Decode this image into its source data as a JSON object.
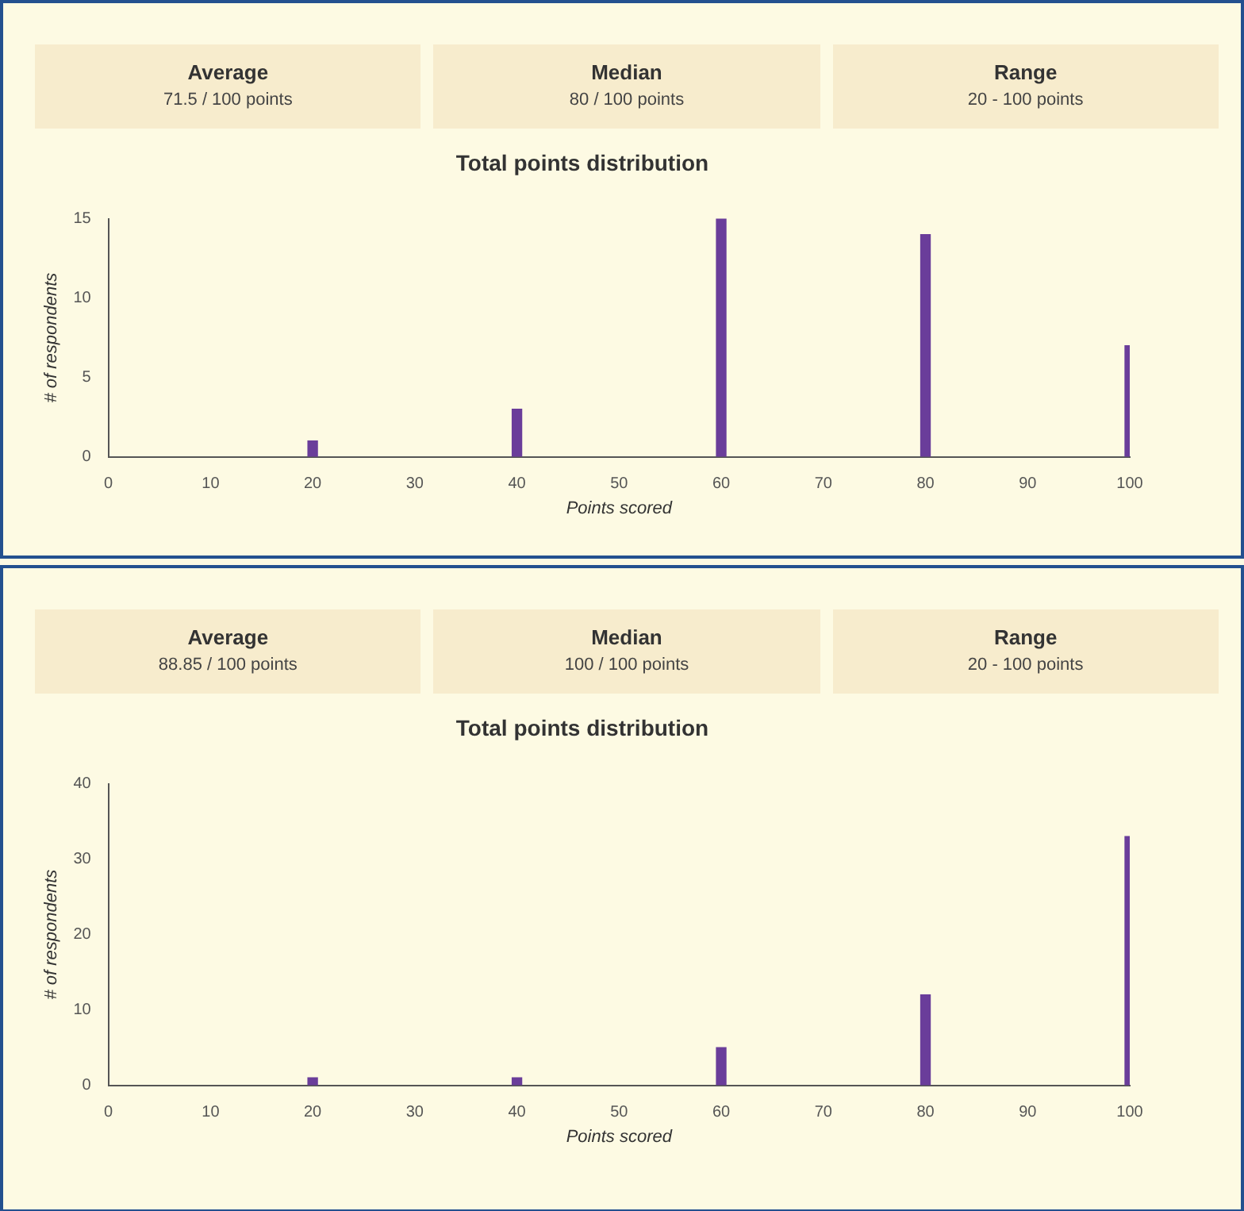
{
  "chart_data": [
    {
      "type": "other",
      "annotations": [
        "Average",
        "71.5 / 100 points",
        "Median",
        "80 / 100 points",
        "Range",
        "20 - 100 points"
      ]
    },
    {
      "type": "bar",
      "title": "Total points distribution",
      "xlabel": "Points scored",
      "ylabel": "# of respondents",
      "x": [
        20,
        40,
        60,
        80,
        100
      ],
      "values": [
        1,
        3,
        15,
        14,
        7
      ],
      "color": "#6a3d9a",
      "xlim": [
        0,
        100
      ],
      "xticks": [
        0,
        10,
        20,
        30,
        40,
        50,
        60,
        70,
        80,
        90,
        100
      ],
      "ylim": [
        0,
        15
      ],
      "yticks": [
        0,
        5,
        10,
        15
      ],
      "grid": false,
      "legend": false
    },
    {
      "type": "other",
      "annotations": [
        "Average",
        "88.85 / 100 points",
        "Median",
        "100 / 100 points",
        "Range",
        "20 - 100 points"
      ]
    },
    {
      "type": "bar",
      "title": "Total points distribution",
      "xlabel": "Points scored",
      "ylabel": "# of respondents",
      "x": [
        20,
        40,
        60,
        80,
        100
      ],
      "values": [
        1,
        1,
        5,
        12,
        33
      ],
      "color": "#6a3d9a",
      "xlim": [
        0,
        100
      ],
      "xticks": [
        0,
        10,
        20,
        30,
        40,
        50,
        60,
        70,
        80,
        90,
        100
      ],
      "ylim": [
        0,
        40
      ],
      "yticks": [
        0,
        10,
        20,
        30,
        40
      ],
      "grid": false,
      "legend": false
    }
  ]
}
